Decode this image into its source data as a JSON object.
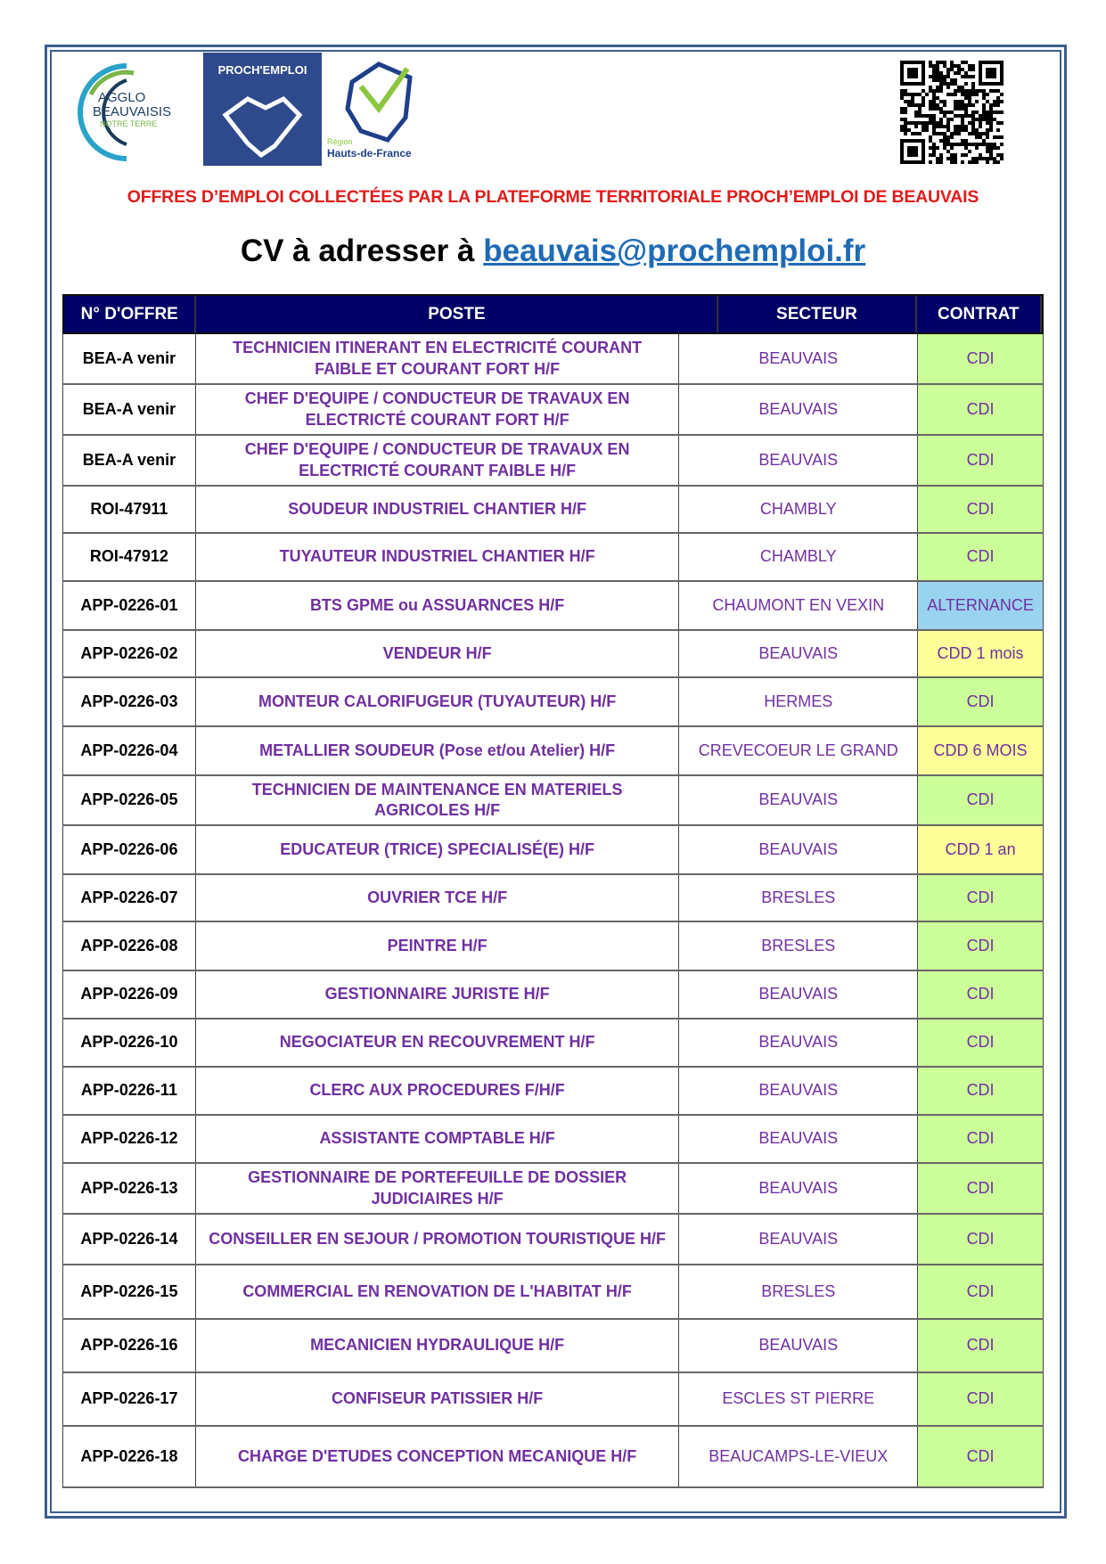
{
  "header": {
    "logos": [
      "AGGLO DU BEAUVAISIS NOTRE TERRE",
      "PROCH'EMPLOI",
      "Région Hauts-de-France"
    ],
    "title": "OFFRES D’EMPLOI COLLECTÉES PAR LA PLATEFORME TERRITORIALE PROCH’EMPLOI DE BEAUVAIS",
    "cv_prefix": "CV à adresser à",
    "cv_email": "beauvais@prochemploi.fr"
  },
  "colors": {
    "title": "#e01b1b",
    "header_bg": "#000066",
    "text": "#7030a0",
    "CDI": "#ccff99",
    "ALTERNANCE": "#99d3f0",
    "CDD": "#ffff99",
    "link": "#1f6bb5"
  },
  "table": {
    "columns": [
      "N° D'OFFRE",
      "POSTE",
      "SECTEUR",
      "CONTRAT"
    ],
    "rows": [
      {
        "id": "BEA-A venir",
        "poste": "TECHNICIEN ITINERANT EN ELECTRICITÉ COURANT FAIBLE ET COURANT FORT H/F",
        "secteur": "BEAUVAIS",
        "contrat": "CDI",
        "type": "CDI"
      },
      {
        "id": "BEA-A venir",
        "poste": "CHEF D'EQUIPE / CONDUCTEUR DE TRAVAUX EN ELECTRICTÉ COURANT FORT H/F",
        "secteur": "BEAUVAIS",
        "contrat": "CDI",
        "type": "CDI"
      },
      {
        "id": "BEA-A venir",
        "poste": "CHEF D'EQUIPE / CONDUCTEUR DE TRAVAUX EN ELECTRICTÉ COURANT FAIBLE H/F",
        "secteur": "BEAUVAIS",
        "contrat": "CDI",
        "type": "CDI"
      },
      {
        "id": "ROI-47911",
        "poste": "SOUDEUR INDUSTRIEL CHANTIER H/F",
        "secteur": "CHAMBLY",
        "contrat": "CDI",
        "type": "CDI"
      },
      {
        "id": "ROI-47912",
        "poste": "TUYAUTEUR INDUSTRIEL CHANTIER H/F",
        "secteur": "CHAMBLY",
        "contrat": "CDI",
        "type": "CDI"
      },
      {
        "id": "APP-0226-01",
        "poste": "BTS GPME ou ASSUARNCES H/F",
        "secteur": "CHAUMONT EN VEXIN",
        "contrat": "ALTERNANCE",
        "type": "ALTERNANCE"
      },
      {
        "id": "APP-0226-02",
        "poste": "VENDEUR H/F",
        "secteur": "BEAUVAIS",
        "contrat": "CDD 1 mois",
        "type": "CDD"
      },
      {
        "id": "APP-0226-03",
        "poste": "MONTEUR CALORIFUGEUR (TUYAUTEUR) H/F",
        "secteur": "HERMES",
        "contrat": "CDI",
        "type": "CDI"
      },
      {
        "id": "APP-0226-04",
        "poste": "METALLIER SOUDEUR (Pose et/ou Atelier)  H/F",
        "secteur": "CREVECOEUR LE GRAND",
        "contrat": "CDD 6 MOIS",
        "type": "CDD"
      },
      {
        "id": "APP-0226-05",
        "poste": "TECHNICIEN DE MAINTENANCE EN MATERIELS AGRICOLES H/F",
        "secteur": "BEAUVAIS",
        "contrat": "CDI",
        "type": "CDI"
      },
      {
        "id": "APP-0226-06",
        "poste": "EDUCATEUR (TRICE) SPECIALISÉ(E) H/F",
        "secteur": "BEAUVAIS",
        "contrat": "CDD 1 an",
        "type": "CDD"
      },
      {
        "id": "APP-0226-07",
        "poste": "OUVRIER TCE H/F",
        "secteur": "BRESLES",
        "contrat": "CDI",
        "type": "CDI"
      },
      {
        "id": "APP-0226-08",
        "poste": "PEINTRE H/F",
        "secteur": "BRESLES",
        "contrat": "CDI",
        "type": "CDI"
      },
      {
        "id": "APP-0226-09",
        "poste": "GESTIONNAIRE JURISTE H/F",
        "secteur": "BEAUVAIS",
        "contrat": "CDI",
        "type": "CDI"
      },
      {
        "id": "APP-0226-10",
        "poste": "NEGOCIATEUR EN RECOUVREMENT H/F",
        "secteur": "BEAUVAIS",
        "contrat": "CDI",
        "type": "CDI"
      },
      {
        "id": "APP-0226-11",
        "poste": "CLERC AUX PROCEDURES F/H/F",
        "secteur": "BEAUVAIS",
        "contrat": "CDI",
        "type": "CDI"
      },
      {
        "id": "APP-0226-12",
        "poste": "ASSISTANTE COMPTABLE H/F",
        "secteur": "BEAUVAIS",
        "contrat": "CDI",
        "type": "CDI"
      },
      {
        "id": "APP-0226-13",
        "poste": "GESTIONNAIRE DE PORTEFEUILLE DE DOSSIER JUDICIAIRES H/F",
        "secteur": "BEAUVAIS",
        "contrat": "CDI",
        "type": "CDI"
      },
      {
        "id": "APP-0226-14",
        "poste": "CONSEILLER EN SEJOUR / PROMOTION TOURISTIQUE H/F",
        "secteur": "BEAUVAIS",
        "contrat": "CDI",
        "type": "CDI"
      },
      {
        "id": "APP-0226-15",
        "poste": "COMMERCIAL EN RENOVATION DE L'HABITAT H/F",
        "secteur": "BRESLES",
        "contrat": "CDI",
        "type": "CDI"
      },
      {
        "id": "APP-0226-16",
        "poste": "MECANICIEN HYDRAULIQUE H/F",
        "secteur": "BEAUVAIS",
        "contrat": "CDI",
        "type": "CDI"
      },
      {
        "id": "APP-0226-17",
        "poste": "CONFISEUR PATISSIER H/F",
        "secteur": "ESCLES ST PIERRE",
        "contrat": "CDI",
        "type": "CDI"
      },
      {
        "id": "APP-0226-18",
        "poste": "CHARGE D'ETUDES CONCEPTION MECANIQUE H/F",
        "secteur": "BEAUCAMPS-LE-VIEUX",
        "contrat": "CDI",
        "type": "CDI"
      }
    ]
  }
}
